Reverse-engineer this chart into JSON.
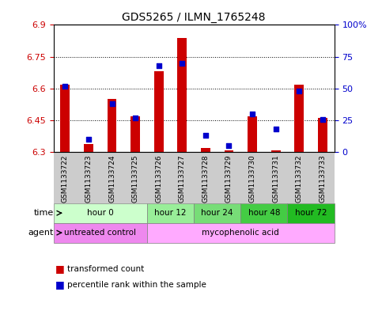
{
  "title": "GDS5265 / ILMN_1765248",
  "samples": [
    "GSM1133722",
    "GSM1133723",
    "GSM1133724",
    "GSM1133725",
    "GSM1133726",
    "GSM1133727",
    "GSM1133728",
    "GSM1133729",
    "GSM1133730",
    "GSM1133731",
    "GSM1133732",
    "GSM1133733"
  ],
  "transformed_counts": [
    6.62,
    6.34,
    6.55,
    6.47,
    6.68,
    6.84,
    6.32,
    6.31,
    6.47,
    6.31,
    6.62,
    6.46
  ],
  "percentile_ranks": [
    52,
    10,
    38,
    27,
    68,
    70,
    13,
    5,
    30,
    18,
    48,
    26
  ],
  "ylim_left": [
    6.3,
    6.9
  ],
  "ylim_right": [
    0,
    100
  ],
  "yticks_left": [
    6.3,
    6.45,
    6.6,
    6.75,
    6.9
  ],
  "yticks_right": [
    0,
    25,
    50,
    75,
    100
  ],
  "ytick_labels_left": [
    "6.3",
    "6.45",
    "6.6",
    "6.75",
    "6.9"
  ],
  "ytick_labels_right": [
    "0",
    "25",
    "50",
    "75",
    "100%"
  ],
  "bar_color": "#cc0000",
  "dot_color": "#0000cc",
  "bar_bottom": 6.3,
  "bar_width": 0.4,
  "dot_size": 25,
  "time_groups": [
    {
      "label": "hour 0",
      "samples": [
        0,
        1,
        2,
        3
      ],
      "color": "#ccffcc"
    },
    {
      "label": "hour 12",
      "samples": [
        4,
        5
      ],
      "color": "#99ee99"
    },
    {
      "label": "hour 24",
      "samples": [
        6,
        7
      ],
      "color": "#77dd77"
    },
    {
      "label": "hour 48",
      "samples": [
        8,
        9
      ],
      "color": "#44cc44"
    },
    {
      "label": "hour 72",
      "samples": [
        10,
        11
      ],
      "color": "#22bb22"
    }
  ],
  "agent_groups": [
    {
      "label": "untreated control",
      "samples": [
        0,
        1,
        2,
        3
      ],
      "color": "#ee88ee"
    },
    {
      "label": "mycophenolic acid",
      "samples": [
        4,
        5,
        6,
        7,
        8,
        9,
        10,
        11
      ],
      "color": "#ffaaff"
    }
  ],
  "sample_bg_color": "#cccccc",
  "grid_color": "#000000",
  "left_label_color": "#cc0000",
  "right_label_color": "#0000cc",
  "figure_width": 4.83,
  "figure_height": 3.93,
  "dpi": 100
}
